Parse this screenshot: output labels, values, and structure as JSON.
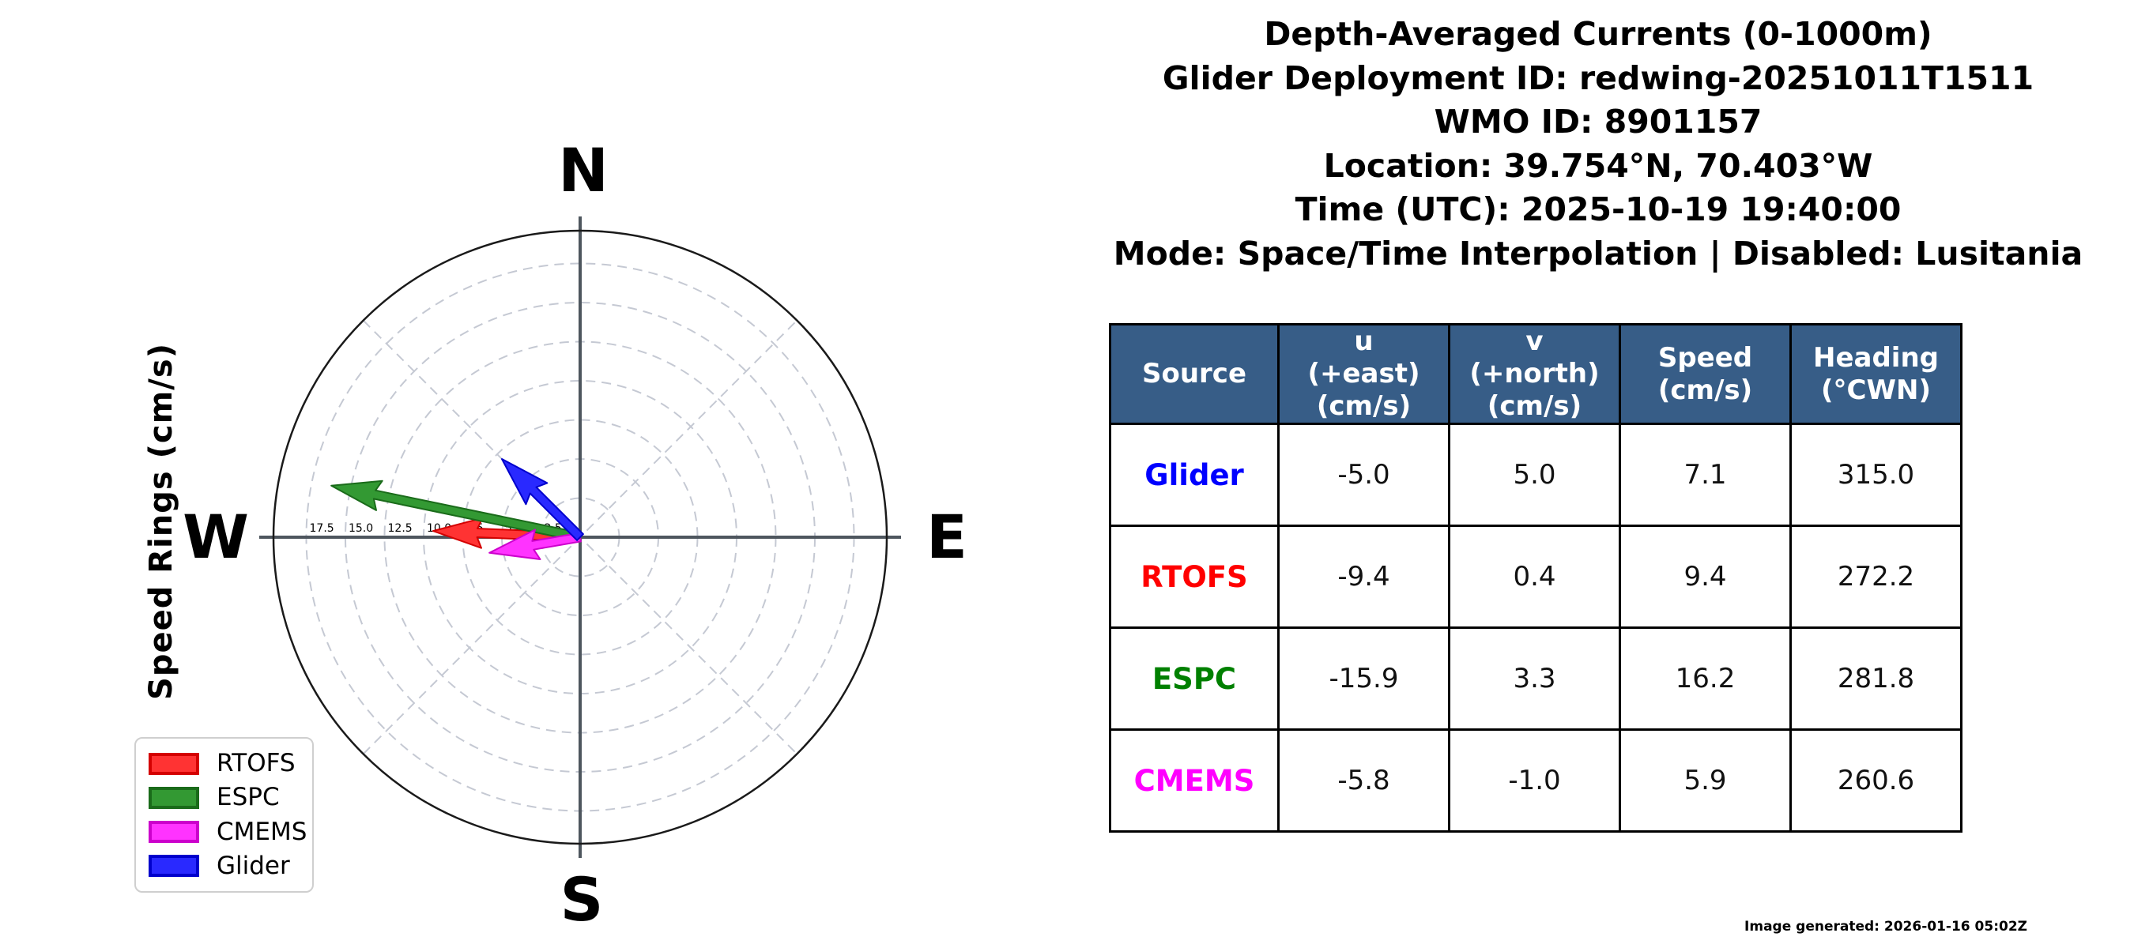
{
  "title_lines": [
    "Depth-Averaged Currents (0-1000m)",
    "Glider Deployment ID: redwing-20251011T1511",
    "WMO ID: 8901157",
    "Location: 39.754°N, 70.403°W",
    "Time (UTC): 2025-10-19 19:40:00",
    "Mode: Space/Time Interpolation | Disabled: Lusitania"
  ],
  "polar": {
    "axis_label": "Speed Rings (cm/s)",
    "compass": {
      "n": "N",
      "e": "E",
      "s": "S",
      "w": "W"
    },
    "ring_labels": [
      "17.5",
      "15.0",
      "12.5",
      "10.0",
      "7.5",
      "5.0",
      "2.5"
    ],
    "ring_values": [
      17.5,
      15.0,
      12.5,
      10.0,
      7.5,
      5.0,
      2.5
    ],
    "grid_color": "#c5c9d3",
    "axis_line_color": "#4e565e",
    "outer_circle_color": "#1a1a1a"
  },
  "legend": {
    "items": [
      {
        "label": "RTOFS",
        "fill": "#ff3333",
        "edge": "#d40000"
      },
      {
        "label": "ESPC",
        "fill": "#339933",
        "edge": "#1a6b1a"
      },
      {
        "label": "CMEMS",
        "fill": "#ff33ff",
        "edge": "#cc00cc"
      },
      {
        "label": "Glider",
        "fill": "#2929ff",
        "edge": "#0000cc"
      }
    ]
  },
  "table": {
    "header_bg": "#375d87",
    "headers": [
      "Source",
      "u\n(+east)\n(cm/s)",
      "v\n(+north)\n(cm/s)",
      "Speed\n(cm/s)",
      "Heading\n(°CWN)"
    ],
    "rows": [
      {
        "source": "Glider",
        "color": "#0000ff",
        "u": "-5.0",
        "v": "5.0",
        "speed": "7.1",
        "heading": "315.0"
      },
      {
        "source": "RTOFS",
        "color": "#ff0000",
        "u": "-9.4",
        "v": "0.4",
        "speed": "9.4",
        "heading": "272.2"
      },
      {
        "source": "ESPC",
        "color": "#008000",
        "u": "-15.9",
        "v": "3.3",
        "speed": "16.2",
        "heading": "281.8"
      },
      {
        "source": "CMEMS",
        "color": "#ff00ff",
        "u": "-5.8",
        "v": "-1.0",
        "speed": "5.9",
        "heading": "260.6"
      }
    ]
  },
  "footer": {
    "generated": "Image generated: 2026-01-16 05:02Z"
  },
  "chart_data": {
    "type": "quiver-polar",
    "title": "Depth-Averaged Currents (0-1000m)",
    "ring_unit": "cm/s",
    "ring_ticks": [
      2.5,
      5.0,
      7.5,
      10.0,
      12.5,
      15.0,
      17.5
    ],
    "rmax": 19.4,
    "grid": true,
    "compass_labels": [
      "N",
      "E",
      "S",
      "W"
    ],
    "legend_position": "lower-left",
    "series": [
      {
        "name": "RTOFS",
        "u": -9.4,
        "v": 0.4,
        "speed": 9.4,
        "heading_deg_cwn": 272.2,
        "fill": "#ff3333",
        "edge": "#d40000"
      },
      {
        "name": "ESPC",
        "u": -15.9,
        "v": 3.3,
        "speed": 16.2,
        "heading_deg_cwn": 281.8,
        "fill": "#339933",
        "edge": "#1a6b1a"
      },
      {
        "name": "CMEMS",
        "u": -5.8,
        "v": -1.0,
        "speed": 5.9,
        "heading_deg_cwn": 260.6,
        "fill": "#ff33ff",
        "edge": "#cc00cc"
      },
      {
        "name": "Glider",
        "u": -5.0,
        "v": 5.0,
        "speed": 7.1,
        "heading_deg_cwn": 315.0,
        "fill": "#2929ff",
        "edge": "#0000cc"
      }
    ]
  }
}
